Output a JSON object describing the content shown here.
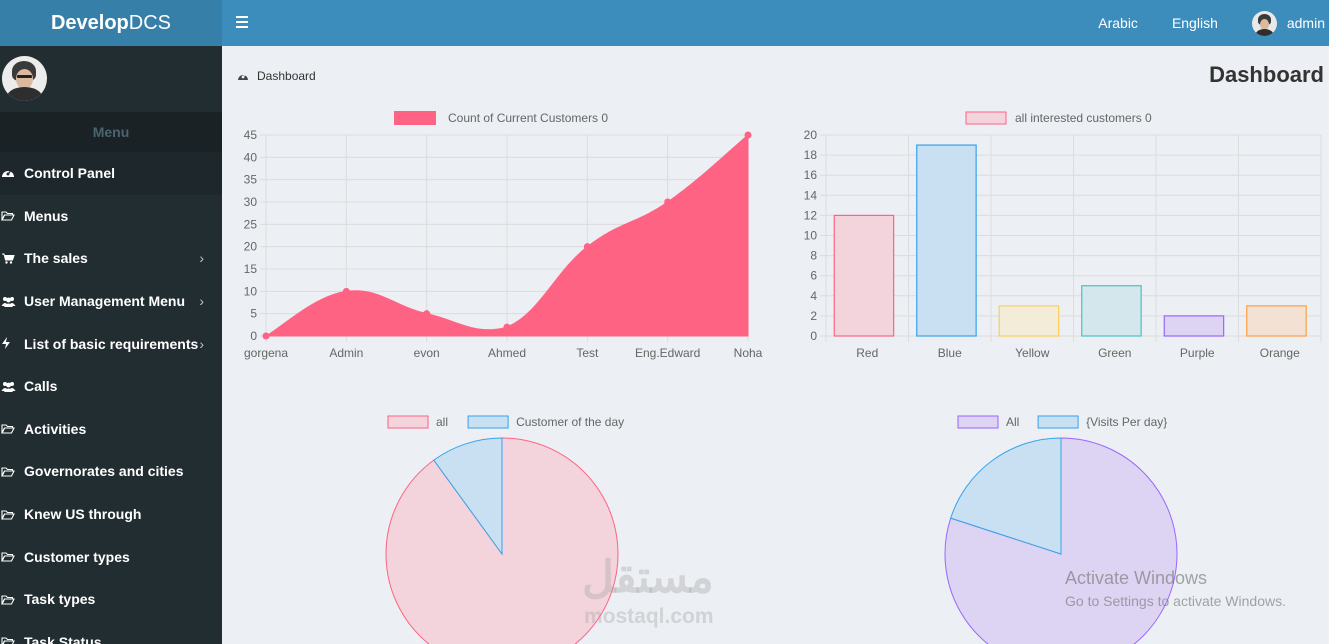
{
  "brand": {
    "bold": "Develop",
    "light": "DCS"
  },
  "topnav": {
    "arabic": "Arabic",
    "english": "English",
    "user": "admin"
  },
  "sidebar": {
    "menu_header": "Menu",
    "items": [
      {
        "label": "Control Panel",
        "icon": "dashboard-icon",
        "chevron": false,
        "active": true
      },
      {
        "label": "Menus",
        "icon": "folder-open-icon",
        "chevron": false
      },
      {
        "label": "The sales",
        "icon": "cart-icon",
        "chevron": true
      },
      {
        "label": "User Management Menu",
        "icon": "users-icon",
        "chevron": true
      },
      {
        "label": "List of basic requirements",
        "icon": "bolt-icon",
        "chevron": true
      },
      {
        "label": "Calls",
        "icon": "users-icon",
        "chevron": false
      },
      {
        "label": "Activities",
        "icon": "folder-open-icon",
        "chevron": false
      },
      {
        "label": "Governorates and cities",
        "icon": "folder-open-icon",
        "chevron": false
      },
      {
        "label": "Knew US through",
        "icon": "folder-open-icon",
        "chevron": false
      },
      {
        "label": "Customer types",
        "icon": "folder-open-icon",
        "chevron": false
      },
      {
        "label": "Task types",
        "icon": "folder-open-icon",
        "chevron": false
      },
      {
        "label": "Task Status",
        "icon": "folder-open-icon",
        "chevron": false
      }
    ]
  },
  "breadcrumb": "Dashboard",
  "page_title": "Dashboard",
  "watermark": {
    "arabic": "مستقل",
    "latin": "mostaql.com"
  },
  "activate_windows": {
    "title": "Activate Windows",
    "subtitle": "Go to Settings to activate Windows."
  },
  "colors": {
    "topbar": "#3c8dbc",
    "sidebar": "#222d32",
    "pink": "#ff6384"
  },
  "chart_data": [
    {
      "type": "area",
      "legend": "Count of Current Customers 0",
      "categories": [
        "gorgena",
        "Admin",
        "evon",
        "Ahmed",
        "Test",
        "Eng.Edward",
        "Noha"
      ],
      "values": [
        0,
        10,
        5,
        2,
        20,
        30,
        45
      ],
      "ylim": [
        0,
        45
      ],
      "yticks": [
        0,
        5,
        10,
        15,
        20,
        25,
        30,
        35,
        40,
        45
      ],
      "color": "#ff6384"
    },
    {
      "type": "bar",
      "legend": "all interested customers  0",
      "categories": [
        "Red",
        "Blue",
        "Yellow",
        "Green",
        "Purple",
        "Orange"
      ],
      "values": [
        12,
        19,
        3,
        5,
        2,
        3
      ],
      "ylim": [
        0,
        20
      ],
      "yticks": [
        0,
        2,
        4,
        6,
        8,
        10,
        12,
        14,
        16,
        18,
        20
      ],
      "fills": [
        "#f3d4dc",
        "#c9e0f3",
        "#f3ecd8",
        "#d3e7ec",
        "#ddd4f3",
        "#f3e2d4"
      ],
      "strokes": [
        "#ff6384",
        "#36a2eb",
        "#ffce56",
        "#4bc0c0",
        "#9966ff",
        "#ff9f40"
      ]
    },
    {
      "type": "pie",
      "legend": [
        "all",
        "Customer of the day"
      ],
      "values": [
        90,
        10
      ],
      "fills": [
        "#f3d4dc",
        "#c9e0f3"
      ],
      "strokes": [
        "#ff6384",
        "#36a2eb"
      ]
    },
    {
      "type": "pie",
      "legend": [
        "All",
        "{Visits Per day}"
      ],
      "values": [
        80,
        20
      ],
      "fills": [
        "#ddd4f3",
        "#c9e0f3"
      ],
      "strokes": [
        "#9966ff",
        "#36a2eb"
      ]
    }
  ]
}
